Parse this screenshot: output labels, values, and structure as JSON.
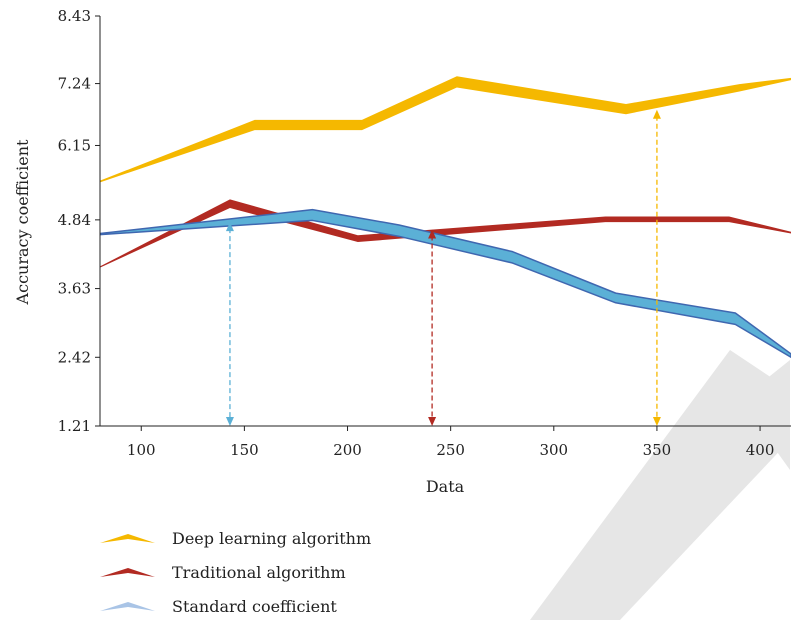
{
  "chart_data": {
    "type": "line",
    "title": "",
    "xlabel": "Data",
    "ylabel": "Accuracy coefficient",
    "xlim": [
      80,
      415
    ],
    "ylim": [
      1.21,
      8.43
    ],
    "x_ticks": [
      "100",
      "150",
      "200",
      "250",
      "300",
      "350",
      "400"
    ],
    "y_ticks": [
      "1.21",
      "2.42",
      "3.63",
      "4.84",
      "6.15",
      "7.24",
      "8.43"
    ],
    "grid": false,
    "legend_position": "bottom-left",
    "series": [
      {
        "name": "Deep learning algorithm",
        "color": "#F5B800",
        "x": [
          80,
          155,
          207,
          253,
          335,
          390,
          415
        ],
        "y_upper": [
          5.53,
          6.6,
          6.6,
          7.37,
          6.88,
          7.23,
          7.34
        ],
        "y_lower": [
          5.5,
          6.42,
          6.42,
          7.17,
          6.7,
          7.1,
          7.3
        ]
      },
      {
        "name": "Traditional algorithm",
        "color": "#B22A22",
        "x": [
          80,
          143,
          205,
          325,
          385,
          415
        ],
        "y_upper": [
          4.02,
          5.2,
          4.57,
          4.9,
          4.9,
          4.63
        ],
        "y_lower": [
          4.0,
          5.05,
          4.45,
          4.8,
          4.8,
          4.6
        ]
      },
      {
        "name": "Standard coefficient",
        "color": "#5BB0D6",
        "edge_color": "#3F67B0",
        "x": [
          80,
          183,
          225,
          280,
          330,
          388,
          415
        ],
        "y_upper": [
          4.6,
          5.02,
          4.75,
          4.28,
          3.55,
          3.2,
          2.48
        ],
        "y_lower": [
          4.58,
          4.83,
          4.55,
          4.08,
          3.38,
          3.0,
          2.42
        ]
      }
    ],
    "annotations": [
      {
        "type": "double-arrow",
        "x": 143,
        "y_from": 1.21,
        "y_to": 4.8,
        "color": "#5BB0D6"
      },
      {
        "type": "double-arrow",
        "x": 241,
        "y_from": 1.21,
        "y_to": 4.67,
        "color": "#B22A22"
      },
      {
        "type": "double-arrow",
        "x": 350,
        "y_from": 1.21,
        "y_to": 6.78,
        "color": "#F5B800"
      }
    ]
  }
}
